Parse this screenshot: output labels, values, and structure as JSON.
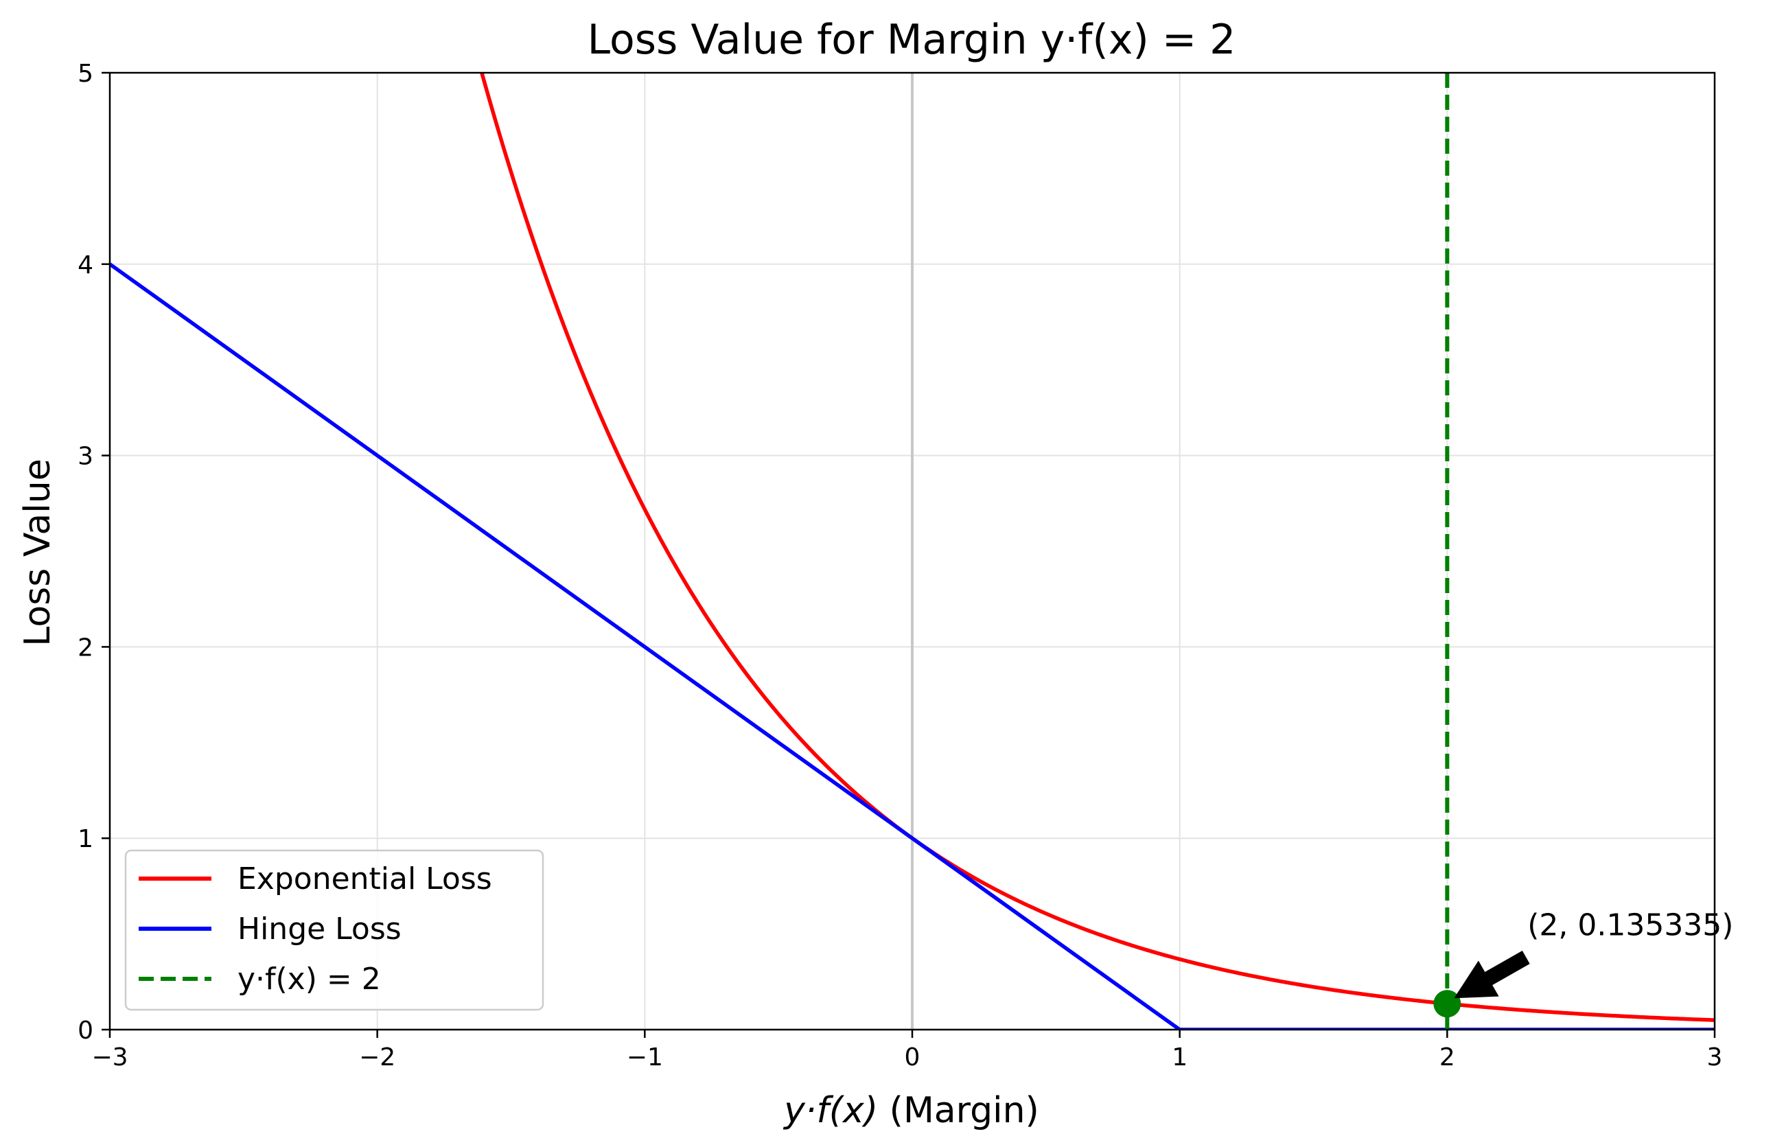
{
  "chart_data": {
    "type": "line",
    "title": "Loss Value for Margin y·f(x) = 2",
    "xlabel_italic": "y·f(x)",
    "xlabel_rest": " (Margin)",
    "ylabel": "Loss Value",
    "xlim": [
      -3,
      3
    ],
    "ylim": [
      0,
      5
    ],
    "xticks": [
      -3,
      -2,
      -1,
      0,
      1,
      2,
      3
    ],
    "xtick_labels": [
      "−3",
      "−2",
      "−1",
      "0",
      "1",
      "2",
      "3"
    ],
    "yticks": [
      0,
      1,
      2,
      3,
      4,
      5
    ],
    "ytick_labels": [
      "0",
      "1",
      "2",
      "3",
      "4",
      "5"
    ],
    "grid": true,
    "legend_position": "lower-left",
    "series": [
      {
        "name": "Exponential Loss",
        "function": "exp(-x)",
        "color": "#ff0000",
        "style": "solid",
        "x": [
          -1.6,
          -1.5,
          -1.4,
          -1.3,
          -1.2,
          -1.1,
          -1.0,
          -0.9,
          -0.8,
          -0.7,
          -0.6,
          -0.5,
          -0.4,
          -0.3,
          -0.2,
          -0.1,
          0.0,
          0.2,
          0.4,
          0.6,
          0.8,
          1.0,
          1.2,
          1.4,
          1.6,
          1.8,
          2.0,
          2.2,
          2.4,
          2.6,
          2.8,
          3.0
        ],
        "y": [
          4.953,
          4.482,
          4.055,
          3.669,
          3.32,
          3.004,
          2.718,
          2.46,
          2.226,
          2.014,
          1.822,
          1.649,
          1.492,
          1.35,
          1.221,
          1.105,
          1.0,
          0.819,
          0.67,
          0.549,
          0.449,
          0.368,
          0.301,
          0.247,
          0.202,
          0.165,
          0.135,
          0.111,
          0.091,
          0.074,
          0.061,
          0.05
        ]
      },
      {
        "name": "Hinge Loss",
        "function": "max(0, 1 - x)",
        "color": "#0000ff",
        "style": "solid",
        "x": [
          -3,
          1,
          3
        ],
        "y": [
          4,
          0,
          0
        ]
      }
    ],
    "vline": {
      "name": "y·f(x) = 2",
      "x": 2,
      "color": "#008000",
      "style": "dashed"
    },
    "marker_point": {
      "x": 2,
      "y": 0.135335,
      "color": "#008000"
    },
    "annotation": {
      "text": "(2, 0.135335)",
      "x": 2,
      "y": 0.135335,
      "text_x": 2.3,
      "text_y": 0.45
    },
    "zero_line_color": "#c8c8c8"
  }
}
